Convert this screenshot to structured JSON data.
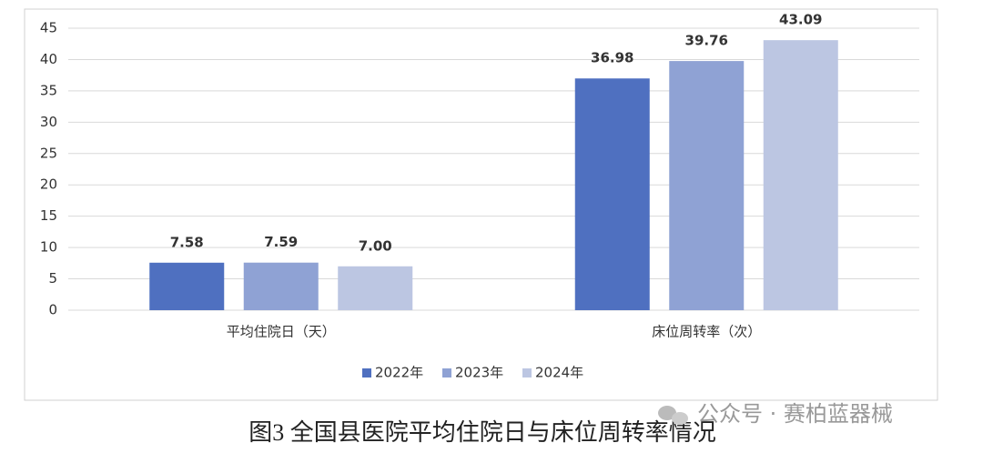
{
  "chart_data": {
    "type": "bar",
    "title": "图3 全国县医院平均住院日与床位周转率情况",
    "annotation": "公众号 · 赛柏蓝器械",
    "categories": [
      "平均住院日（天）",
      "床位周转率（次）"
    ],
    "series": [
      {
        "name": "2022年",
        "color": "#4f70c0",
        "values": [
          7.58,
          36.98
        ],
        "value_labels": [
          "7.58",
          "36.98"
        ]
      },
      {
        "name": "2023年",
        "color": "#8fa2d4",
        "values": [
          7.59,
          39.76
        ],
        "value_labels": [
          "7.59",
          "39.76"
        ]
      },
      {
        "name": "2024年",
        "color": "#bcc6e2",
        "values": [
          7.0,
          43.09
        ],
        "value_labels": [
          "7.00",
          "43.09"
        ]
      }
    ],
    "ylim": [
      0,
      45
    ],
    "yticks": [
      0,
      5,
      10,
      15,
      20,
      25,
      30,
      35,
      40,
      45
    ],
    "grid": true,
    "legend": "bottom"
  }
}
